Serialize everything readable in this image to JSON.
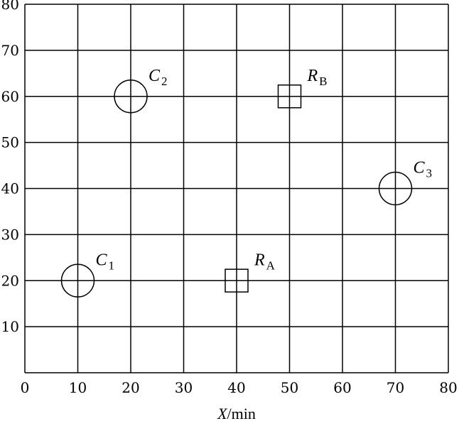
{
  "chart_data": {
    "type": "scatter",
    "xlabel": {
      "var": "X",
      "unit": "/min"
    },
    "ylabel": "",
    "xlim": [
      0,
      80
    ],
    "ylim": [
      0,
      80
    ],
    "xticks": [
      "0",
      "10",
      "20",
      "30",
      "40",
      "50",
      "60",
      "70",
      "80"
    ],
    "yticks": [
      "10",
      "20",
      "30",
      "40",
      "50",
      "60",
      "70",
      "80"
    ],
    "grid": true,
    "points": [
      {
        "main": "C",
        "sub": "1",
        "x": 10,
        "y": 20,
        "marker": "circle"
      },
      {
        "main": "C",
        "sub": "2",
        "x": 20,
        "y": 60,
        "marker": "circle"
      },
      {
        "main": "C",
        "sub": "3",
        "x": 70,
        "y": 40,
        "marker": "circle"
      },
      {
        "main": "R",
        "sub": "A",
        "x": 40,
        "y": 20,
        "marker": "square"
      },
      {
        "main": "R",
        "sub": "B",
        "x": 50,
        "y": 60,
        "marker": "square"
      }
    ]
  }
}
